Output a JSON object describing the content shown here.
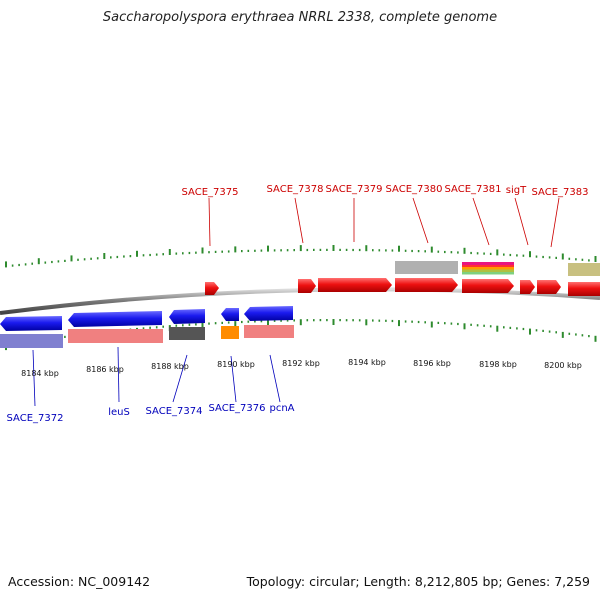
{
  "title": "Saccharopolyspora erythraea NRRL 2338, complete genome",
  "footer": {
    "accession": "Accession: NC_009142",
    "topology": "Topology: circular; Length: 8,212,805 bp; Genes: 7,259"
  },
  "scale": {
    "ticks": [
      "8184 kbp",
      "8186 kbp",
      "8188 kbp",
      "8190 kbp",
      "8192 kbp",
      "8194 kbp",
      "8196 kbp",
      "8198 kbp",
      "8200 kbp"
    ]
  },
  "colors": {
    "forward_gene": "#ee1111",
    "reverse_gene": "#1a1aee",
    "forward_label": "#cc0000",
    "reverse_label": "#0000bb",
    "backbone": "#777777",
    "tick": "#2e8b2e",
    "rrna_grey": "#b0b0b0",
    "trna_orange": "#ff8c00",
    "salmon": "#f08080",
    "lavender": "#8080d0",
    "olive": "#c8c080",
    "dark_grey": "#555555"
  },
  "labels_top": [
    {
      "text": "SACE_7375"
    },
    {
      "text": "SACE_7378"
    },
    {
      "text": "SACE_7379"
    },
    {
      "text": "SACE_7380"
    },
    {
      "text": "SACE_7381"
    },
    {
      "text": "sigT"
    },
    {
      "text": "SACE_7383"
    }
  ],
  "labels_bottom": [
    {
      "text": "SACE_7372"
    },
    {
      "text": "leuS"
    },
    {
      "text": "SACE_7374"
    },
    {
      "text": "SACE_7376"
    },
    {
      "text": "pcnA"
    }
  ]
}
